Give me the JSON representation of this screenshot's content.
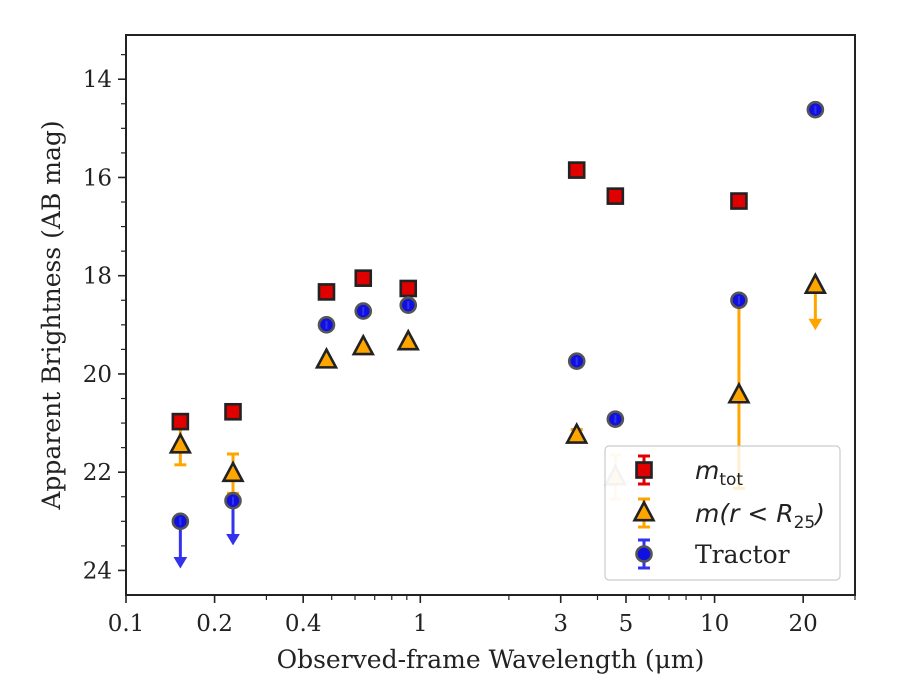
{
  "chart_data": {
    "type": "scatter",
    "xlabel": "Observed-frame Wavelength (μm)",
    "ylabel": "Apparent Brightness (AB mag)",
    "x_scale": "log",
    "xlim": [
      0.1,
      30
    ],
    "ylim": [
      24.5,
      13.1
    ],
    "y_inverted": true,
    "x_ticks": [
      {
        "value": 0.1,
        "label": "0.1"
      },
      {
        "value": 0.2,
        "label": "0.2"
      },
      {
        "value": 0.4,
        "label": "0.4"
      },
      {
        "value": 1,
        "label": "1"
      },
      {
        "value": 3,
        "label": "3"
      },
      {
        "value": 5,
        "label": "5"
      },
      {
        "value": 10,
        "label": "10"
      },
      {
        "value": 20,
        "label": "20"
      }
    ],
    "y_ticks": [
      {
        "value": 14,
        "label": "14"
      },
      {
        "value": 16,
        "label": "16"
      },
      {
        "value": 18,
        "label": "18"
      },
      {
        "value": 20,
        "label": "20"
      },
      {
        "value": 22,
        "label": "22"
      },
      {
        "value": 24,
        "label": "24"
      }
    ],
    "grid": false,
    "legend_position": "lower-right",
    "series": [
      {
        "key": "mtot",
        "legend_main": "m",
        "legend_sub": "tot",
        "marker": "square",
        "color": "#e00000",
        "error_color": "#e00000",
        "points": [
          {
            "x": 0.153,
            "y": 20.97
          },
          {
            "x": 0.231,
            "y": 20.77
          },
          {
            "x": 0.48,
            "y": 18.33
          },
          {
            "x": 0.64,
            "y": 18.05
          },
          {
            "x": 0.91,
            "y": 18.26
          },
          {
            "x": 3.4,
            "y": 15.85
          },
          {
            "x": 4.6,
            "y": 16.38
          },
          {
            "x": 12.1,
            "y": 16.48
          }
        ]
      },
      {
        "key": "mr25",
        "legend_main": "m(r < R",
        "legend_sub": "25",
        "legend_tail": ")",
        "marker": "triangle",
        "color": "#ffa500",
        "error_color": "#ffa500",
        "points": [
          {
            "x": 0.153,
            "y": 21.45,
            "yerr": 0.4
          },
          {
            "x": 0.231,
            "y": 22.03,
            "yerr": 0.4
          },
          {
            "x": 0.48,
            "y": 19.72
          },
          {
            "x": 0.64,
            "y": 19.45
          },
          {
            "x": 0.91,
            "y": 19.35
          },
          {
            "x": 3.4,
            "y": 21.25,
            "yerr": 0.12
          },
          {
            "x": 4.6,
            "y": 22.1,
            "yerr": 0.45,
            "faded": true
          },
          {
            "x": 12.1,
            "y": 20.43,
            "yerr": 1.9
          },
          {
            "x": 22.0,
            "y": 18.2,
            "upper_limit": 0.85
          }
        ]
      },
      {
        "key": "tractor",
        "legend_main": "Tractor",
        "marker": "circle",
        "color": "#1010e0",
        "error_color": "#3333ee",
        "points": [
          {
            "x": 0.153,
            "y": 23.0,
            "upper_limit": 0.9
          },
          {
            "x": 0.231,
            "y": 22.58,
            "upper_limit": 0.85
          },
          {
            "x": 0.48,
            "y": 19.0
          },
          {
            "x": 0.64,
            "y": 18.72
          },
          {
            "x": 0.91,
            "y": 18.6
          },
          {
            "x": 3.4,
            "y": 19.74
          },
          {
            "x": 4.6,
            "y": 20.92
          },
          {
            "x": 12.1,
            "y": 18.5
          },
          {
            "x": 22.0,
            "y": 14.62
          }
        ]
      }
    ]
  }
}
